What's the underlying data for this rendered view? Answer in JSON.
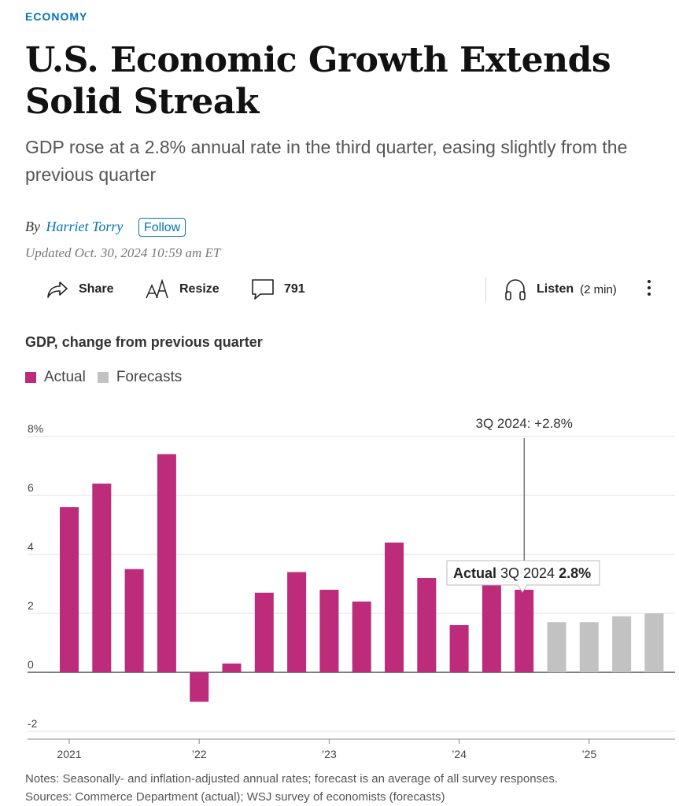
{
  "article": {
    "section": "ECONOMY",
    "headline": "U.S. Economic Growth Extends Solid Streak",
    "dek": "GDP rose at a 2.8% annual rate in the third quarter, easing slightly from the previous quarter",
    "by": "By",
    "author": "Harriet Torry",
    "follow_label": "Follow",
    "updated": "Updated Oct. 30, 2024 10:59 am ET"
  },
  "toolbar": {
    "share_label": "Share",
    "resize_label": "Resize",
    "comments_count": "791",
    "listen_label": "Listen",
    "listen_duration": "(2 min)"
  },
  "colors": {
    "actual": "#bc2c7b",
    "forecast": "#c2c2c2",
    "accent": "#0274b6"
  },
  "chart_data": {
    "type": "bar",
    "title": "GDP, change from previous quarter",
    "legend": [
      {
        "label": "Actual",
        "color": "#bc2c7b"
      },
      {
        "label": "Forecasts",
        "color": "#c2c2c2"
      }
    ],
    "ylim": [
      -2,
      8
    ],
    "yticks": [
      -2,
      0,
      2,
      4,
      6,
      8
    ],
    "ytick_labels": [
      "-2",
      "0",
      "2",
      "4",
      "6",
      "8%"
    ],
    "xtick_labels": [
      {
        "label": "2021",
        "quarter_index": 0
      },
      {
        "label": "’22",
        "quarter_index": 4
      },
      {
        "label": "’23",
        "quarter_index": 8
      },
      {
        "label": "’24",
        "quarter_index": 12
      },
      {
        "label": "’25",
        "quarter_index": 16
      }
    ],
    "series": [
      {
        "name": "Actual",
        "quarters": [
          "1Q 2021",
          "2Q 2021",
          "3Q 2021",
          "4Q 2021",
          "1Q 2022",
          "2Q 2022",
          "3Q 2022",
          "4Q 2022",
          "1Q 2023",
          "2Q 2023",
          "3Q 2023",
          "4Q 2023",
          "1Q 2024",
          "2Q 2024",
          "3Q 2024"
        ],
        "values": [
          5.6,
          6.4,
          3.5,
          7.4,
          -1.0,
          0.3,
          2.7,
          3.4,
          2.8,
          2.4,
          4.4,
          3.2,
          1.6,
          3.0,
          2.8
        ]
      },
      {
        "name": "Forecasts",
        "quarters": [
          "4Q 2024",
          "1Q 2025",
          "2Q 2025",
          "3Q 2025"
        ],
        "values": [
          1.7,
          1.7,
          1.9,
          2.0
        ]
      }
    ],
    "annotation": {
      "label": "3Q 2024: +2.8%",
      "quarter_index": 14
    },
    "tooltip": {
      "series_label": "Actual",
      "quarter": "3Q 2024",
      "value_label": "2.8%"
    }
  },
  "notes": {
    "notes_line": "Notes: Seasonally- and inflation-adjusted annual rates; forecast is an average of all survey responses.",
    "sources_line": "Sources: Commerce Department (actual); WSJ survey of economists (forecasts)"
  }
}
